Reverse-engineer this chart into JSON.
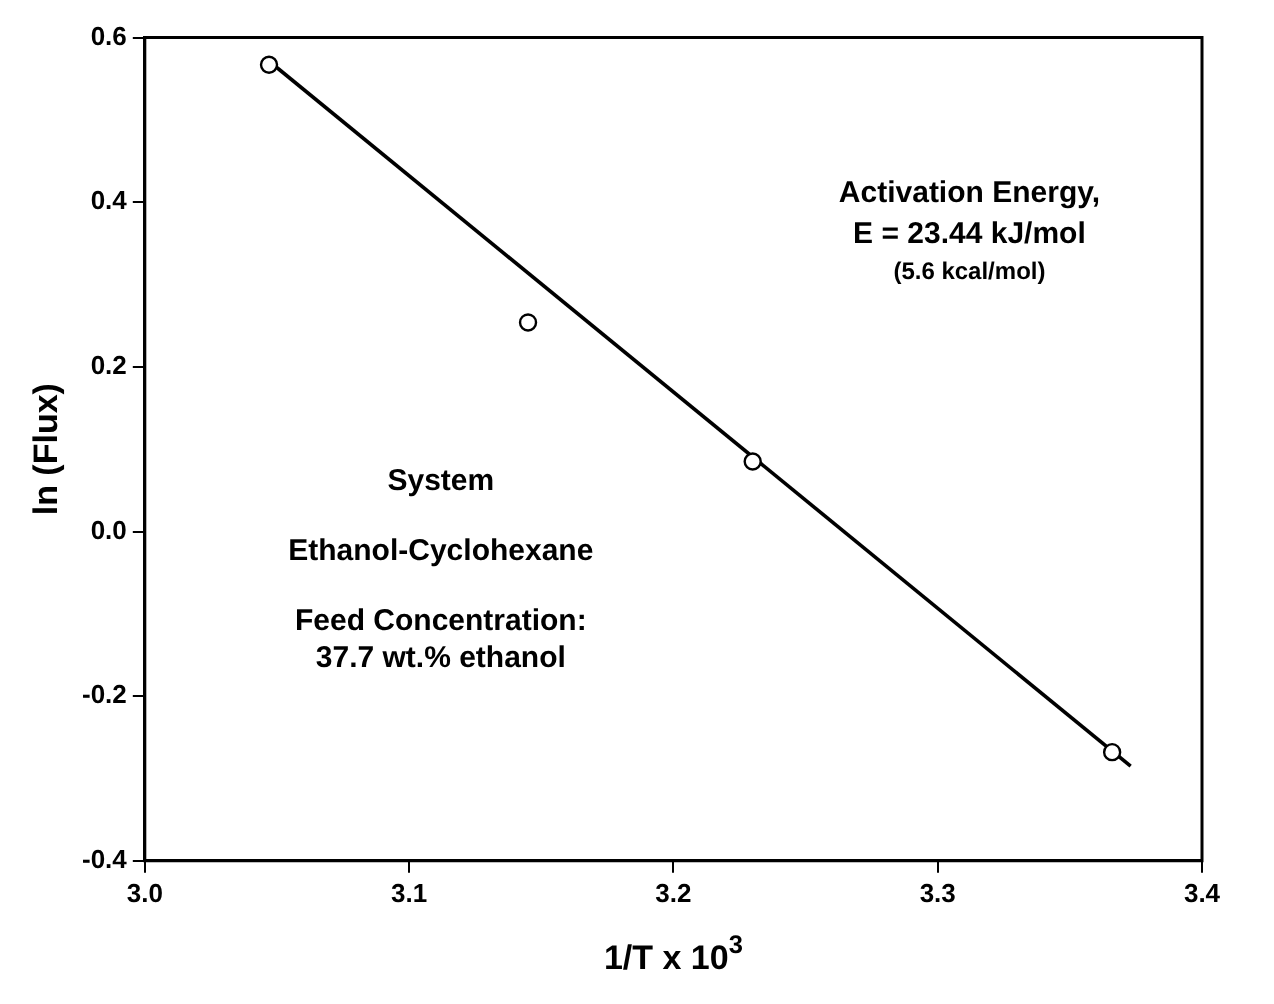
{
  "chart_data": {
    "type": "scatter",
    "xlabel": "1/T x 10$^{3}$",
    "ylabel": "ln (Flux)",
    "xlim": [
      3.0,
      3.4
    ],
    "xticks": [
      {
        "value": 3.0,
        "label": "3.0"
      },
      3.1,
      3.2,
      3.3,
      {
        "value": 3.4,
        "label": "3.4"
      }
    ],
    "ylim": [
      -0.4,
      0.6
    ],
    "yticks": [
      {
        "value": -0.4,
        "label": "-0.4"
      },
      {
        "value": -0.2,
        "label": "-0.2"
      },
      {
        "value": 0,
        "label": "0.0"
      },
      {
        "value": 0.2,
        "label": "0.2"
      },
      {
        "value": 0.4,
        "label": "0.4"
      },
      {
        "value": 0.6,
        "label": "0.6"
      }
    ],
    "grid": false,
    "legend": false,
    "marker": "circle",
    "series": [
      {
        "color": "#000000",
        "x": [
          3.047,
          3.145,
          3.23,
          3.366
        ],
        "values": [
          0.567,
          0.254,
          0.085,
          -0.268
        ]
      },
      {
        "type": "line",
        "color": "#000000",
        "line_style": "solid",
        "marker": "none",
        "x": [
          3.046,
          3.373
        ],
        "values": [
          0.574,
          -0.285
        ]
      }
    ],
    "annotations": [
      "Activation Energy,",
      "E = 23.44 kJ/mol",
      "(5.6 kcal/mol)",
      "System",
      "Ethanol-Cyclohexane",
      "Feed Concentration:",
      "37.7 wt.% ethanol"
    ]
  }
}
